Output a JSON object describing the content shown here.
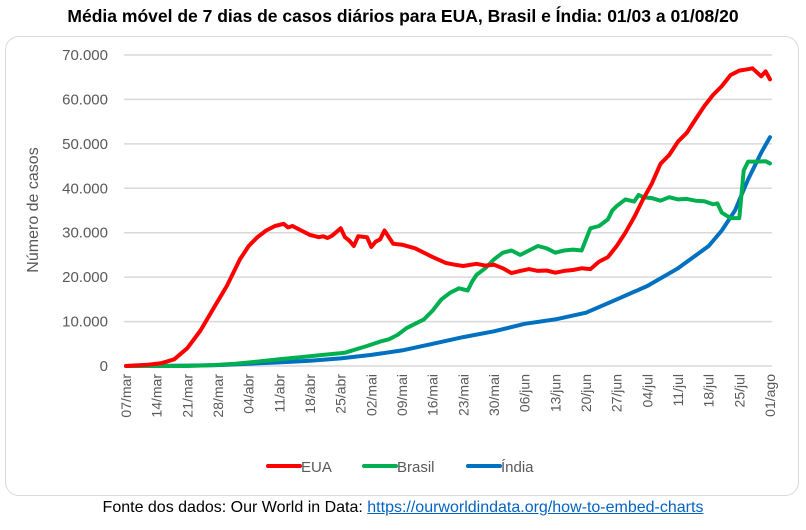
{
  "chart_data": {
    "type": "line",
    "title": "Média móvel de 7 dias de casos diários para EUA, Brasil e Índia: 01/03 a 01/08/20",
    "xlabel": "",
    "ylabel": "Número de casos",
    "ylim": [
      0,
      70000
    ],
    "yticks": [
      0,
      10000,
      20000,
      30000,
      40000,
      50000,
      60000,
      70000
    ],
    "ytick_labels": [
      "0",
      "10.000",
      "20.000",
      "30.000",
      "40.000",
      "50.000",
      "60.000",
      "70.000"
    ],
    "xtick_labels": [
      "07/mar",
      "14/mar",
      "21/mar",
      "28/mar",
      "04/abr",
      "11/abr",
      "18/abr",
      "25/abr",
      "02/mai",
      "09/mai",
      "16/mai",
      "23/mai",
      "30/mai",
      "06/jun",
      "13/jun",
      "20/jun",
      "27/jun",
      "04/jul",
      "11/jul",
      "18/jul",
      "25/jul",
      "01/ago"
    ],
    "x_unit": "days since 07/mar",
    "grid": true,
    "legend_position": "bottom",
    "series": [
      {
        "name": "EUA",
        "color": "#ff0000",
        "x": [
          0,
          5,
          8,
          11,
          14,
          17,
          20,
          23,
          26,
          28,
          30,
          32,
          34,
          36,
          37,
          38,
          40,
          42,
          44,
          45,
          46,
          47,
          49,
          50,
          51,
          52,
          53,
          55,
          56,
          57,
          58,
          59,
          61,
          63,
          66,
          70,
          73,
          75,
          77,
          80,
          82,
          84,
          86,
          88,
          90,
          92,
          94,
          96,
          98,
          100,
          102,
          104,
          106,
          108,
          110,
          112,
          114,
          116,
          118,
          120,
          122,
          124,
          126,
          128,
          130,
          132,
          134,
          136,
          138,
          139,
          140,
          142,
          143,
          145,
          146,
          147
        ],
        "y": [
          0,
          300,
          600,
          1500,
          4000,
          8000,
          13000,
          18000,
          24000,
          27000,
          29000,
          30500,
          31500,
          32000,
          31200,
          31500,
          30500,
          29500,
          29000,
          29200,
          28800,
          29300,
          31000,
          29000,
          28200,
          27000,
          29200,
          29000,
          26800,
          28000,
          28500,
          30500,
          27500,
          27300,
          26500,
          24500,
          23200,
          22800,
          22500,
          23000,
          22600,
          22800,
          22000,
          20900,
          21400,
          21800,
          21400,
          21500,
          21000,
          21400,
          21600,
          22000,
          21800,
          23500,
          24500,
          27000,
          30000,
          33500,
          37500,
          41000,
          45500,
          47500,
          50500,
          52500,
          55500,
          58500,
          61000,
          63000,
          65500,
          66000,
          66500,
          66800,
          67000,
          65200,
          66300,
          64500
        ]
      },
      {
        "name": "Brasil",
        "color": "#00b050",
        "x": [
          0,
          10,
          14,
          20,
          25,
          30,
          35,
          40,
          45,
          50,
          55,
          58,
          60,
          62,
          64,
          66,
          68,
          70,
          72,
          74,
          76,
          78,
          79,
          80,
          82,
          84,
          86,
          88,
          90,
          92,
          94,
          96,
          98,
          100,
          102,
          104,
          106,
          108,
          110,
          111,
          112,
          114,
          116,
          117,
          118,
          120,
          122,
          124,
          126,
          128,
          130,
          132,
          134,
          135,
          136,
          138,
          140,
          141,
          142,
          144,
          146,
          147
        ],
        "y": [
          0,
          0,
          0,
          200,
          500,
          1000,
          1500,
          2000,
          2500,
          3000,
          4500,
          5500,
          6000,
          7000,
          8500,
          9500,
          10500,
          12500,
          15000,
          16500,
          17500,
          17000,
          19000,
          20500,
          22000,
          24000,
          25500,
          26000,
          25000,
          26000,
          27000,
          26500,
          25500,
          26000,
          26200,
          26000,
          31000,
          31500,
          33000,
          35000,
          36000,
          37500,
          37000,
          38500,
          38000,
          37800,
          37200,
          38000,
          37500,
          37600,
          37200,
          37100,
          36400,
          36600,
          34500,
          33300,
          33300,
          44000,
          46000,
          46000,
          46100,
          45600
        ]
      },
      {
        "name": "Índia",
        "color": "#0070c0",
        "x": [
          0,
          14,
          21,
          28,
          35,
          42,
          49,
          56,
          63,
          70,
          77,
          84,
          91,
          98,
          105,
          112,
          119,
          126,
          133,
          136,
          139,
          142,
          145,
          147
        ],
        "y": [
          0,
          100,
          200,
          500,
          800,
          1200,
          1700,
          2500,
          3500,
          5000,
          6500,
          7800,
          9500,
          10500,
          12000,
          15000,
          18000,
          22000,
          27000,
          30500,
          35000,
          42000,
          48000,
          51500
        ]
      }
    ]
  },
  "source": {
    "prefix": "Fonte dos dados: Our World in Data: ",
    "link_text": "https://ourworldindata.org/how-to-embed-charts"
  }
}
